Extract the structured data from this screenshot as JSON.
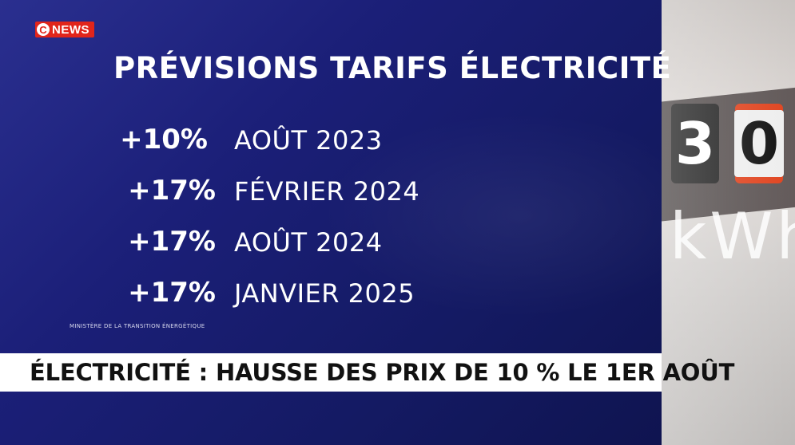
{
  "logo": {
    "c": "C",
    "news": "NEWS"
  },
  "title": "PRÉVISIONS TARIFS ÉLECTRICITÉ",
  "forecasts": [
    {
      "percent": "+10%",
      "date": "AOÛT 2023"
    },
    {
      "percent": "+17%",
      "date": "FÉVRIER 2024"
    },
    {
      "percent": "+17%",
      "date": "AOÛT 2024"
    },
    {
      "percent": "+17%",
      "date": "JANVIER 2025"
    }
  ],
  "source": "MINISTÈRE DE LA TRANSITION ÉNERGÉTIQUE",
  "banner": "ÉLECTRICITÉ : HAUSSE DES PRIX DE 10 % LE 1ER AOÛT",
  "colors": {
    "background": "#1b1f78",
    "logo_red": "#e1251b",
    "banner": "#ffffff"
  }
}
